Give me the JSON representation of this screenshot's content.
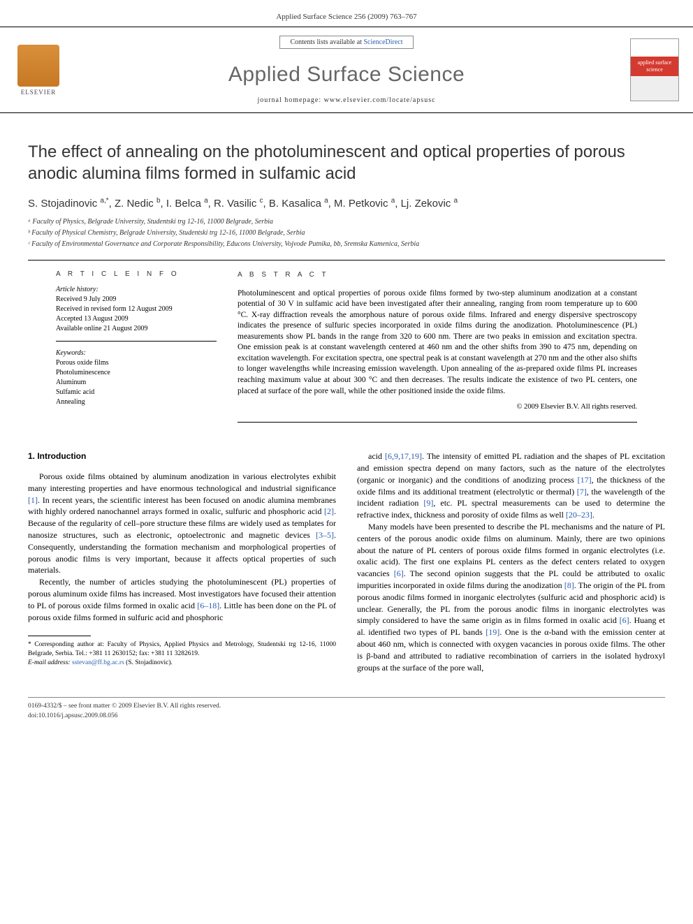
{
  "header": {
    "citation": "Applied Surface Science 256 (2009) 763–767"
  },
  "masthead": {
    "elsevier": "ELSEVIER",
    "contents_prefix": "Contents lists available at ",
    "contents_link": "ScienceDirect",
    "journal": "Applied Surface Science",
    "homepage_prefix": "journal homepage: ",
    "homepage_url": "www.elsevier.com/locate/apsusc",
    "cover_text": "applied surface science"
  },
  "title": "The effect of annealing on the photoluminescent and optical properties of porous anodic alumina films formed in sulfamic acid",
  "authors_html": "S. Stojadinovic <sup>a,*</sup>, Z. Nedic <sup>b</sup>, I. Belca <sup>a</sup>, R. Vasilic <sup>c</sup>, B. Kasalica <sup>a</sup>, M. Petkovic <sup>a</sup>, Lj. Zekovic <sup>a</sup>",
  "affiliations": [
    "ᵃ Faculty of Physics, Belgrade University, Studentski trg 12-16, 11000 Belgrade, Serbia",
    "ᵇ Faculty of Physical Chemistry, Belgrade University, Studentski trg 12-16, 11000 Belgrade, Serbia",
    "ᶜ Faculty of Environmental Governance and Corporate Responsibility, Educons University, Vojvode Putnika, bb, Sremska Kamenica, Serbia"
  ],
  "info": {
    "heading": "A R T I C L E  I N F O",
    "history_label": "Article history:",
    "history": [
      "Received 9 July 2009",
      "Received in revised form 12 August 2009",
      "Accepted 13 August 2009",
      "Available online 21 August 2009"
    ],
    "keywords_label": "Keywords:",
    "keywords": [
      "Porous oxide films",
      "Photoluminescence",
      "Aluminum",
      "Sulfamic acid",
      "Annealing"
    ]
  },
  "abstract": {
    "heading": "A B S T R A C T",
    "text": "Photoluminescent and optical properties of porous oxide films formed by two-step aluminum anodization at a constant potential of 30 V in sulfamic acid have been investigated after their annealing, ranging from room temperature up to 600 °C. X-ray diffraction reveals the amorphous nature of porous oxide films. Infrared and energy dispersive spectroscopy indicates the presence of sulfuric species incorporated in oxide films during the anodization. Photoluminescence (PL) measurements show PL bands in the range from 320 to 600 nm. There are two peaks in emission and excitation spectra. One emission peak is at constant wavelength centered at 460 nm and the other shifts from 390 to 475 nm, depending on excitation wavelength. For excitation spectra, one spectral peak is at constant wavelength at 270 nm and the other also shifts to longer wavelengths while increasing emission wavelength. Upon annealing of the as-prepared oxide films PL increases reaching maximum value at about 300 °C and then decreases. The results indicate the existence of two PL centers, one placed at surface of the pore wall, while the other positioned inside the oxide films.",
    "copyright": "© 2009 Elsevier B.V. All rights reserved."
  },
  "body": {
    "section_heading": "1. Introduction",
    "left_paragraphs": [
      "Porous oxide films obtained by aluminum anodization in various electrolytes exhibit many interesting properties and have enormous technological and industrial significance <span class='ref'>[1]</span>. In recent years, the scientific interest has been focused on anodic alumina membranes with highly ordered nanochannel arrays formed in oxalic, sulfuric and phosphoric acid <span class='ref'>[2]</span>. Because of the regularity of cell–pore structure these films are widely used as templates for nanosize structures, such as electronic, optoelectronic and magnetic devices <span class='ref'>[3–5]</span>. Consequently, understanding the formation mechanism and morphological properties of porous anodic films is very important, because it affects optical properties of such materials.",
      "Recently, the number of articles studying the photoluminescent (PL) properties of porous aluminum oxide films has increased. Most investigators have focused their attention to PL of porous oxide films formed in oxalic acid <span class='ref'>[6–18]</span>. Little has been done on the PL of porous oxide films formed in sulfuric acid and phosphoric"
    ],
    "right_paragraphs": [
      "acid <span class='ref'>[6,9,17,19]</span>. The intensity of emitted PL radiation and the shapes of PL excitation and emission spectra depend on many factors, such as the nature of the electrolytes (organic or inorganic) and the conditions of anodizing process <span class='ref'>[17]</span>, the thickness of the oxide films and its additional treatment (electrolytic or thermal) <span class='ref'>[7]</span>, the wavelength of the incident radiation <span class='ref'>[9]</span>, etc. PL spectral measurements can be used to determine the refractive index, thickness and porosity of oxide films as well <span class='ref'>[20–23]</span>.",
      "Many models have been presented to describe the PL mechanisms and the nature of PL centers of the porous anodic oxide films on aluminum. Mainly, there are two opinions about the nature of PL centers of porous oxide films formed in organic electrolytes (i.e. oxalic acid). The first one explains PL centers as the defect centers related to oxygen vacancies <span class='ref'>[6]</span>. The second opinion suggests that the PL could be attributed to oxalic impurities incorporated in oxide films during the anodization <span class='ref'>[8]</span>. The origin of the PL from porous anodic films formed in inorganic electrolytes (sulfuric acid and phosphoric acid) is unclear. Generally, the PL from the porous anodic films in inorganic electrolytes was simply considered to have the same origin as in films formed in oxalic acid <span class='ref'>[6]</span>. Huang et al. identified two types of PL bands <span class='ref'>[19]</span>. One is the α-band with the emission center at about 460 nm, which is connected with oxygen vacancies in porous oxide films. The other is β-band and attributed to radiative recombination of carriers in the isolated hydroxyl groups at the surface of the pore wall,"
    ]
  },
  "footnotes": {
    "corresponding": "* Corresponding author at: Faculty of Physics, Applied Physics and Metrology, Studentski trg 12-16, 11000 Belgrade, Serbia. Tel.: +381 11 2630152; fax: +381 11 3282619.",
    "email_label": "E-mail address:",
    "email": "sstevan@ff.bg.ac.rs",
    "email_author": "(S. Stojadinovic)."
  },
  "footer": {
    "line1": "0169-4332/$ – see front matter © 2009 Elsevier B.V. All rights reserved.",
    "line2": "doi:10.1016/j.apsusc.2009.08.056"
  }
}
